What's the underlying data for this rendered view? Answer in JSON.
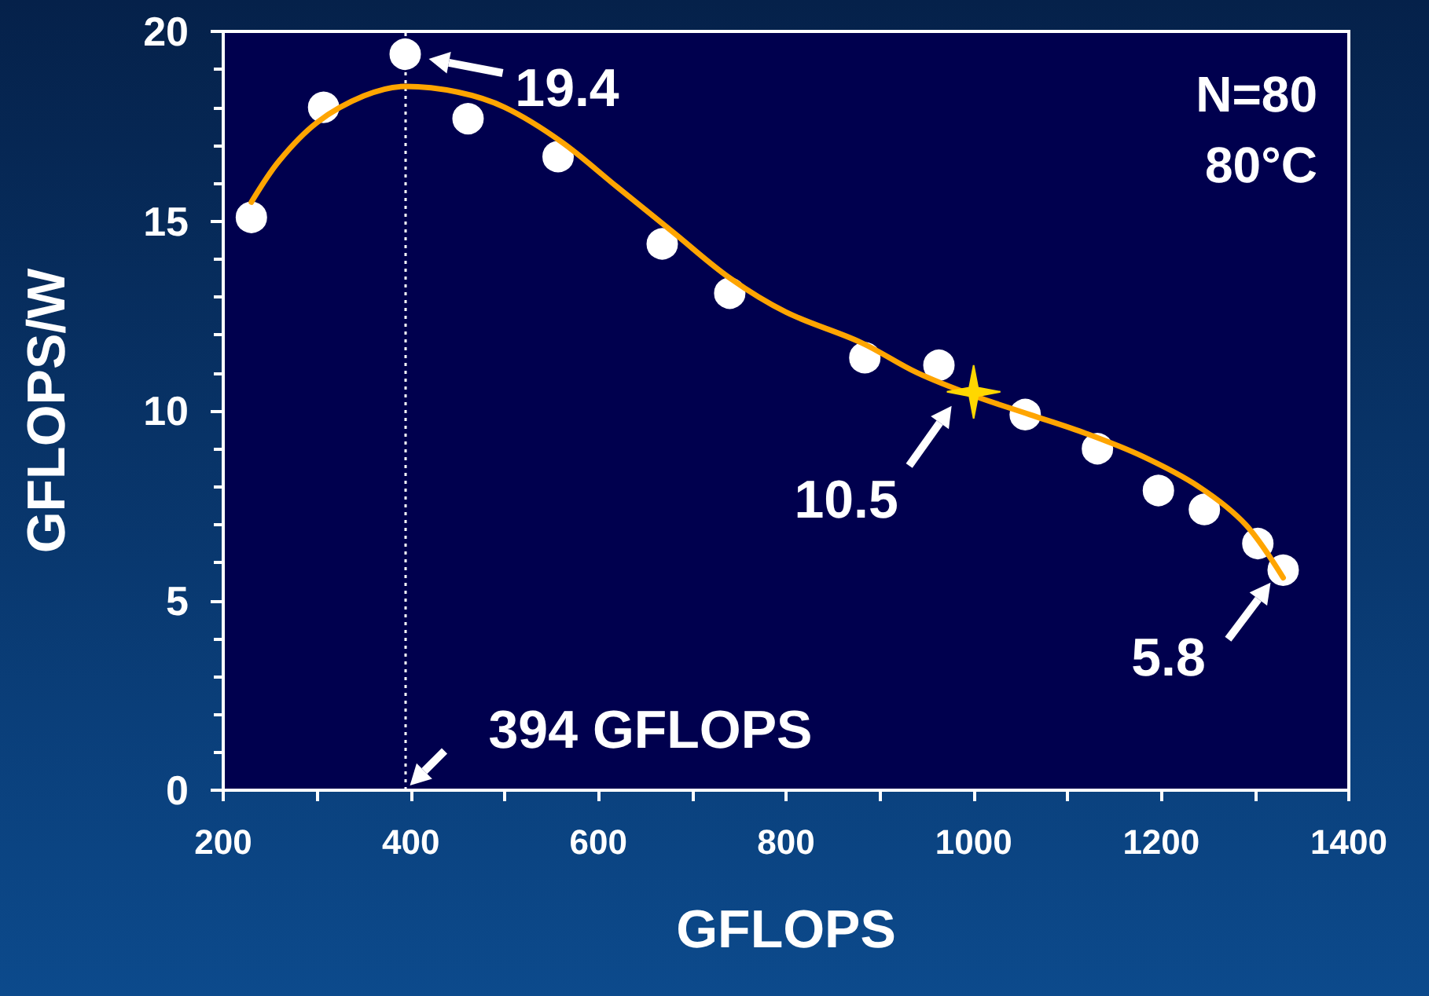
{
  "chart_data": {
    "type": "scatter",
    "xlabel": "GFLOPS",
    "ylabel": "GFLOPS/W",
    "xlim": [
      200,
      1400
    ],
    "xticks": [
      200,
      400,
      600,
      800,
      1000,
      1200,
      1400
    ],
    "ylim": [
      0,
      20
    ],
    "yticks": [
      0,
      5,
      10,
      15,
      20
    ],
    "grid": false,
    "series": [
      {
        "color": "#ffffff",
        "marker": "circle",
        "x": [
          230,
          307,
          394,
          461,
          557,
          668,
          740,
          884,
          963,
          1055,
          1132,
          1197,
          1246,
          1303,
          1330
        ],
        "values": [
          15.1,
          18.0,
          19.4,
          17.7,
          16.7,
          14.4,
          13.1,
          11.4,
          11.2,
          9.9,
          9.0,
          7.9,
          7.4,
          6.5,
          5.8
        ]
      },
      {
        "type": "line",
        "color": "#ffa500",
        "marker": "none",
        "line_style": "solid",
        "x": [
          230,
          260,
          300,
          350,
          394,
          450,
          500,
          560,
          620,
          680,
          740,
          800,
          880,
          940,
          1000,
          1060,
          1120,
          1180,
          1240,
          1290,
          1330
        ],
        "values": [
          15.5,
          16.6,
          17.6,
          18.3,
          18.55,
          18.4,
          18.0,
          17.1,
          15.9,
          14.7,
          13.5,
          12.6,
          11.8,
          11.0,
          10.4,
          9.9,
          9.4,
          8.8,
          8.0,
          7.0,
          5.6
        ]
      },
      {
        "color": "#ffd700",
        "marker": "star",
        "x": [
          1000
        ],
        "values": [
          10.5
        ]
      }
    ],
    "ref_lines": [
      {
        "axis": "x",
        "value": 394,
        "color": "#ffffff",
        "line_style": "dotted"
      }
    ],
    "annotations": [
      {
        "text": "19.4",
        "x": 394,
        "y": 19.4
      },
      {
        "text": "10.5",
        "x": 1000,
        "y": 10.5
      },
      {
        "text": "5.8",
        "x": 1330,
        "y": 5.8
      },
      {
        "text": "394 GFLOPS",
        "x": 394,
        "y": 0
      },
      "N=80",
      "80°C"
    ]
  }
}
